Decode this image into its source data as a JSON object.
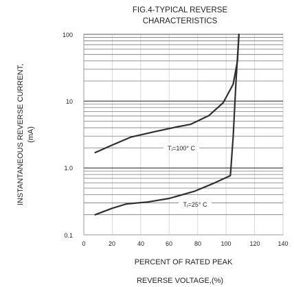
{
  "chart_data": {
    "type": "line",
    "title": [
      "FIG.4-TYPICAL REVERSE",
      "CHARACTERISTICS"
    ],
    "xlabel": [
      "PERCENT OF RATED PEAK",
      "REVERSE VOLTAGE,(%)"
    ],
    "ylabel": [
      "INSTANTANEOUS REVERSE CURRENT,",
      "(mA)"
    ],
    "xlim": [
      0,
      140
    ],
    "ylim": [
      0.1,
      100
    ],
    "yscale": "log",
    "x_ticks": [
      0,
      20,
      40,
      60,
      80,
      100,
      120,
      140
    ],
    "y_ticks": [
      0.1,
      1.0,
      10,
      100
    ],
    "y_tick_labels": [
      "0.1",
      "1.0",
      "10",
      "100"
    ],
    "grid": true,
    "series": [
      {
        "name": "Tⱼ=100° C",
        "values": [
          [
            8,
            1.7
          ],
          [
            20,
            2.2
          ],
          [
            33,
            2.9
          ],
          [
            50,
            3.5
          ],
          [
            65,
            4.1
          ],
          [
            75,
            4.5
          ],
          [
            88,
            6.1
          ],
          [
            98,
            9.5
          ],
          [
            105,
            18
          ],
          [
            108,
            40
          ],
          [
            109,
            100
          ]
        ]
      },
      {
        "name": "Tⱼ=25° C",
        "values": [
          [
            8,
            0.2
          ],
          [
            20,
            0.25
          ],
          [
            30,
            0.29
          ],
          [
            45,
            0.31
          ],
          [
            60,
            0.35
          ],
          [
            78,
            0.45
          ],
          [
            92,
            0.6
          ],
          [
            103,
            0.77
          ],
          [
            105,
            3
          ],
          [
            107,
            20
          ],
          [
            109,
            100
          ]
        ]
      }
    ],
    "annotations": [
      "Tⱼ=100° C",
      "Tⱼ=25° C"
    ]
  }
}
